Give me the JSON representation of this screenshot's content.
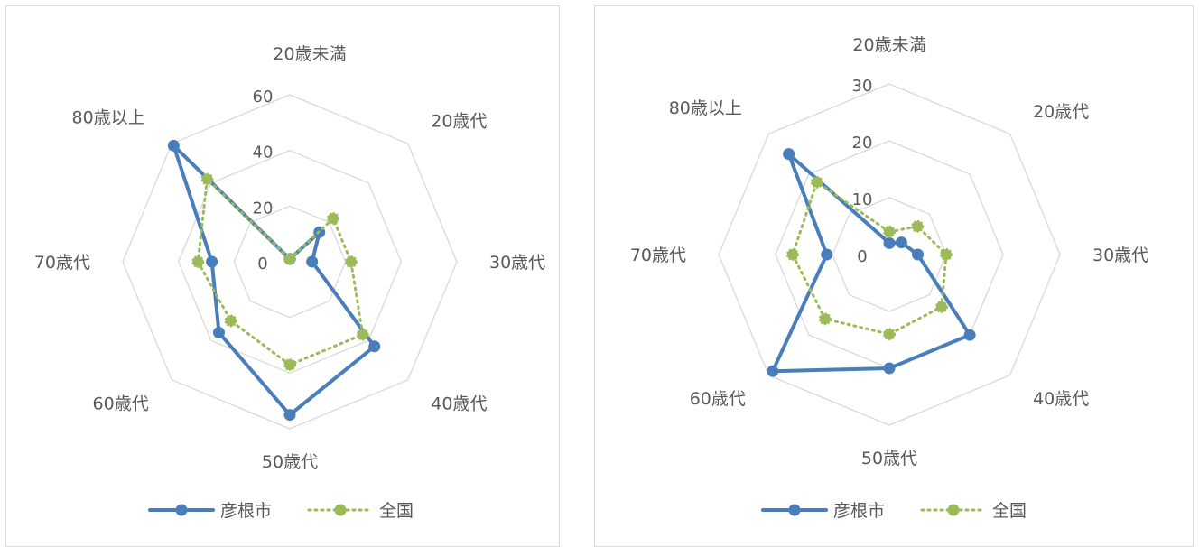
{
  "colors": {
    "hikone": "#4a7ebb",
    "national": "#9bbb59",
    "grid": "#d9d9d9",
    "text": "#595959"
  },
  "chart_data": [
    {
      "type": "radar",
      "categories": [
        "20歳未満",
        "20歳代",
        "30歳代",
        "40歳代",
        "50歳代",
        "60歳代",
        "70歳代",
        "80歳以上"
      ],
      "rmax": 60,
      "ticks": [
        "0",
        "20",
        "40",
        "60"
      ],
      "tick_values": [
        0,
        20,
        40,
        60
      ],
      "legend_position": "bottom",
      "series": [
        {
          "name": "彦根市",
          "values": [
            1,
            15,
            8,
            43,
            55,
            36,
            28,
            59
          ]
        },
        {
          "name": "全国",
          "values": [
            1,
            22,
            22,
            37,
            37,
            30,
            33,
            42
          ]
        }
      ]
    },
    {
      "type": "radar",
      "categories": [
        "20歳未満",
        "20歳代",
        "30歳代",
        "40歳代",
        "50歳代",
        "60歳代",
        "70歳代",
        "80歳以上"
      ],
      "rmax": 30,
      "ticks": [
        "0",
        "10",
        "20",
        "30"
      ],
      "tick_values": [
        0,
        10,
        20,
        30
      ],
      "legend_position": "bottom",
      "series": [
        {
          "name": "彦根市",
          "values": [
            2,
            3,
            5,
            20,
            20,
            29,
            11,
            25
          ]
        },
        {
          "name": "全国",
          "values": [
            4,
            7,
            10,
            13,
            14,
            16,
            17,
            18
          ]
        }
      ]
    }
  ]
}
